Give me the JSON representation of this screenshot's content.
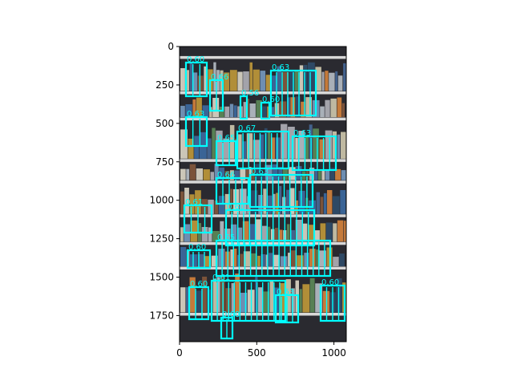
{
  "figure": {
    "image_description_colors": {
      "shelf_dark": "#2a2a30",
      "shelf_edge": "#d8d8d8",
      "box_color": "#00ffff"
    },
    "x_ticks": [
      0,
      500,
      1000
    ],
    "y_ticks": [
      0,
      250,
      500,
      750,
      1000,
      1250,
      1500,
      1750
    ],
    "xlim": [
      0,
      1080
    ],
    "ylim": [
      1920,
      0
    ]
  },
  "detections": [
    {
      "label": "0.60"
    },
    {
      "label": "0.66"
    },
    {
      "label": "0.56"
    },
    {
      "label": "0.63"
    },
    {
      "label": "0.60"
    },
    {
      "label": "0.63"
    },
    {
      "label": "0.65"
    },
    {
      "label": "0.67"
    },
    {
      "label": "0.63"
    },
    {
      "label": "0.66"
    },
    {
      "label": "0.63"
    },
    {
      "label": "0.61"
    },
    {
      "label": "0.60"
    },
    {
      "label": "0.60"
    },
    {
      "label": "0.65"
    },
    {
      "label": "0.60"
    },
    {
      "label": "0.61"
    },
    {
      "label": "0.63"
    },
    {
      "label": "0.60"
    },
    {
      "label": "0.60"
    }
  ]
}
